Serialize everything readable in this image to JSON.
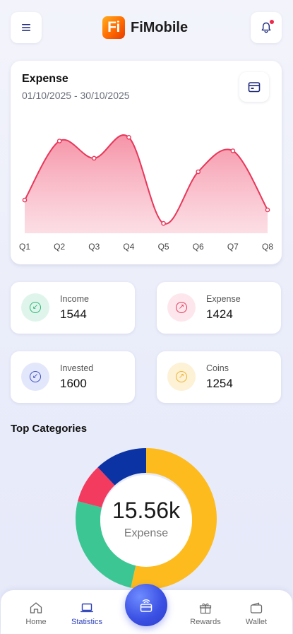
{
  "app": {
    "logo_text": "Fi",
    "name": "FiMobile"
  },
  "header": {
    "menu_icon": "menu-icon",
    "notification_icon": "bell-icon",
    "has_unread": true
  },
  "chart_card": {
    "title": "Expense",
    "date_range": "01/10/2025 - 30/10/2025",
    "calendar_icon": "calendar-icon"
  },
  "chart_data": {
    "type": "area",
    "title": "Expense",
    "categories": [
      "Q1",
      "Q2",
      "Q3",
      "Q4",
      "Q5",
      "Q6",
      "Q7",
      "Q8"
    ],
    "values": [
      27,
      75,
      61,
      78,
      8,
      50,
      67,
      19
    ],
    "ylim": [
      0,
      100
    ],
    "grid": false,
    "color": "#e8375a",
    "fill_color": "#f7a9b9"
  },
  "stats": [
    {
      "label": "Income",
      "value": "1544",
      "icon": "arrow-down-left-icon",
      "color": "#2bb673",
      "bg": "#dff5ec"
    },
    {
      "label": "Expense",
      "value": "1424",
      "icon": "arrow-up-right-icon",
      "color": "#e8375a",
      "bg": "#fde7ec"
    },
    {
      "label": "Invested",
      "value": "1600",
      "icon": "arrow-down-left-icon",
      "color": "#3d4fc4",
      "bg": "#e3e7fb"
    },
    {
      "label": "Coins",
      "value": "1254",
      "icon": "arrow-up-right-icon",
      "color": "#f0b429",
      "bg": "#fdf1d6"
    }
  ],
  "categories_section": {
    "title": "Top Categories"
  },
  "donut": {
    "center_value": "15.56k",
    "center_label": "Expense",
    "segments": [
      {
        "share": 0.535,
        "color": "#fdbb1e"
      },
      {
        "share": 0.255,
        "color": "#3cc694"
      },
      {
        "share": 0.09,
        "color": "#f33a5f"
      },
      {
        "share": 0.12,
        "color": "#0c33a3"
      }
    ]
  },
  "tabbar": {
    "tabs": [
      {
        "label": "Home",
        "icon": "home-icon",
        "active": false
      },
      {
        "label": "Statistics",
        "icon": "laptop-icon",
        "active": true
      },
      {
        "label": "Rewards",
        "icon": "gift-icon",
        "active": false
      },
      {
        "label": "Wallet",
        "icon": "wallet-icon",
        "active": false
      }
    ],
    "center_button_icon": "contactless-card-icon"
  }
}
